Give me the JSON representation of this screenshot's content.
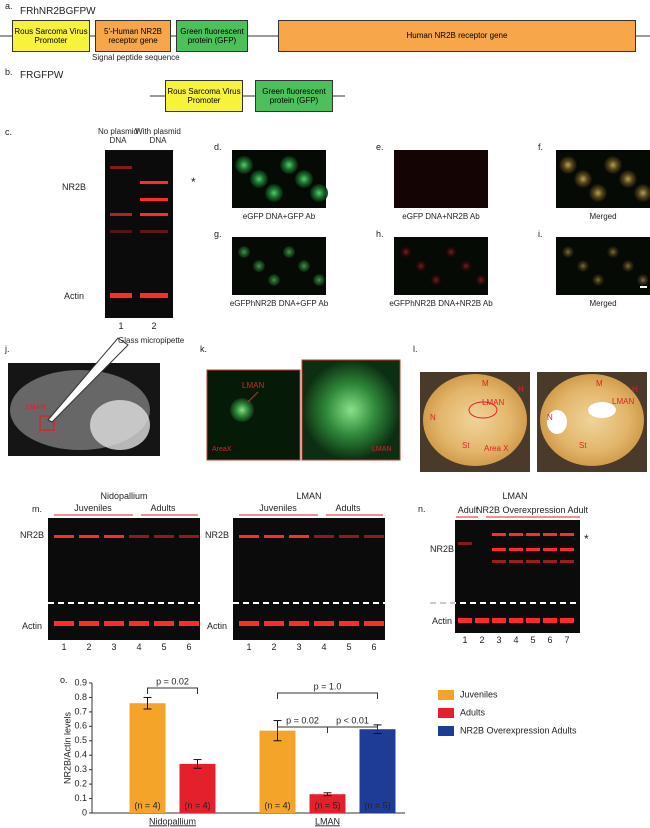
{
  "panels": {
    "a": {
      "label": "a.",
      "title": "FRhNR2BGFPW",
      "boxes": [
        "Rous Sarcoma Virus Promoter",
        "5'-Human NR2B receptor gene",
        "Green fluorescent protein (GFP)",
        "Human NR2B receptor gene"
      ],
      "note": "Signal peptide sequence"
    },
    "b": {
      "label": "b.",
      "title": "FRGFPW",
      "boxes": [
        "Rous Sarcoma Virus Promoter",
        "Green fluorescent protein (GFP)"
      ]
    },
    "c": {
      "label": "c.",
      "columns": [
        "No plasmid DNA",
        "With plasmid DNA"
      ],
      "rows": [
        "NR2B",
        "Actin"
      ],
      "star": "*",
      "lanes": [
        "1",
        "2"
      ]
    },
    "images": [
      {
        "label": "d.",
        "caption": "eGFP DNA+GFP Ab"
      },
      {
        "label": "e.",
        "caption": "eGFP DNA+NR2B Ab"
      },
      {
        "label": "f.",
        "caption": "Merged"
      },
      {
        "label": "g.",
        "caption": "eGFPhNR2B DNA+GFP Ab"
      },
      {
        "label": "h.",
        "caption": "eGFPhNR2B DNA+NR2B Ab"
      },
      {
        "label": "i.",
        "caption": "Merged"
      }
    ],
    "j": {
      "label": "j.",
      "pipette": "Glass micropipette",
      "region": "LMAN"
    },
    "k": {
      "label": "k.",
      "texts": [
        "LMAN",
        "AreaX",
        "LMAN"
      ]
    },
    "l": {
      "label": "l.",
      "left": [
        "M",
        "H",
        "N",
        "LMAN",
        "St",
        "Area X"
      ],
      "right": [
        "M",
        "H",
        "N",
        "LMAN",
        "St"
      ]
    },
    "m": {
      "label": "m.",
      "blots": [
        {
          "title": "Nidopallium",
          "groups": [
            "Juveniles",
            "Adults"
          ],
          "rows": [
            "NR2B",
            "Actin"
          ],
          "lanes": [
            "1",
            "2",
            "3",
            "4",
            "5",
            "6"
          ]
        },
        {
          "title": "LMAN",
          "groups": [
            "Juveniles",
            "Adults"
          ],
          "rows": [
            "NR2B",
            "Actin"
          ],
          "lanes": [
            "1",
            "2",
            "3",
            "4",
            "5",
            "6"
          ]
        }
      ]
    },
    "n": {
      "label": "n.",
      "title": "LMAN",
      "groups": [
        "Adult",
        "NR2B Overexpression Adult"
      ],
      "rows": [
        "NR2B",
        "Actin"
      ],
      "star": "*",
      "lanes": [
        "1",
        "2",
        "3",
        "4",
        "5",
        "6",
        "7"
      ]
    },
    "o": {
      "label": "o."
    }
  },
  "chart_data": {
    "type": "bar",
    "ylabel": "NR2B/Actin levels",
    "categories": [
      "Nidopallium",
      "LMAN"
    ],
    "series": [
      {
        "name": "Juveniles",
        "color": "#f5a42a",
        "values": [
          0.76,
          0.57
        ],
        "errors": [
          0.04,
          0.07
        ],
        "n_labels": [
          "(n = 4)",
          "(n = 4)"
        ]
      },
      {
        "name": "Adults",
        "color": "#e3202c",
        "values": [
          0.34,
          0.13
        ],
        "errors": [
          0.03,
          0.01
        ],
        "n_labels": [
          "(n = 4)",
          "(n = 5)"
        ]
      },
      {
        "name": "NR2B Overexpression Adults",
        "color": "#1e3b96",
        "values": [
          null,
          0.58
        ],
        "errors": [
          null,
          0.03
        ],
        "n_labels": [
          null,
          "(n = 5)"
        ]
      }
    ],
    "annotations": [
      "p = 0.02",
      "p = 1.0",
      "p = 0.02",
      "p < 0.01"
    ],
    "ylim": [
      0,
      0.9
    ],
    "yticks": [
      0,
      0.1,
      0.2,
      0.3,
      0.4,
      0.5,
      0.6,
      0.7,
      0.8,
      0.9
    ]
  }
}
